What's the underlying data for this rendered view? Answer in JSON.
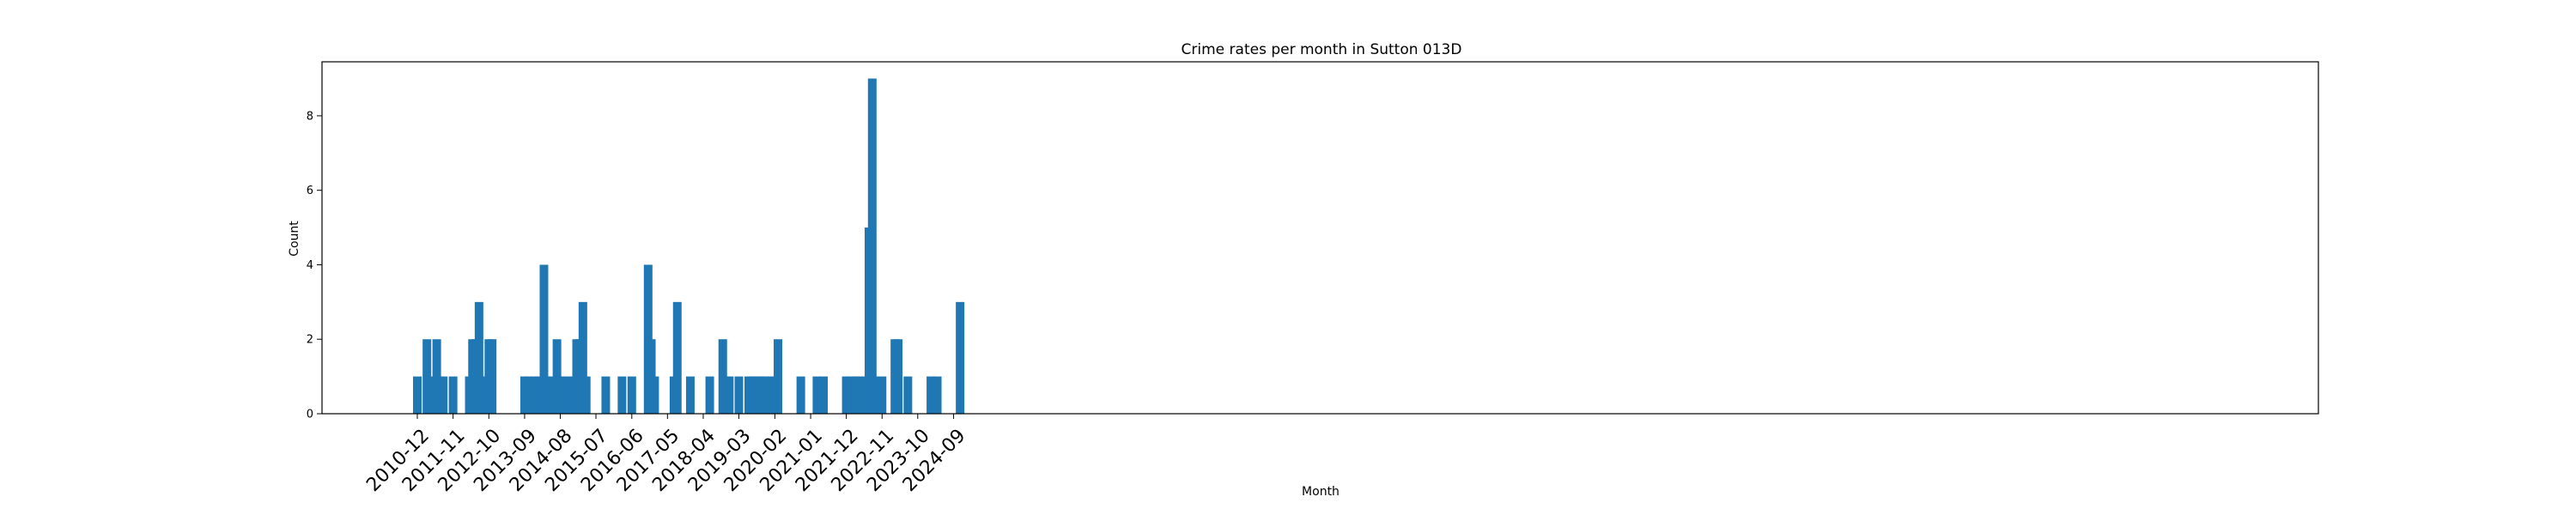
{
  "chart_data": {
    "type": "bar",
    "title": "Crime rates per month in Sutton 013D",
    "xlabel": "Month",
    "ylabel": "Count",
    "ylim": [
      0,
      9.45
    ],
    "yticks": [
      0,
      2,
      4,
      6,
      8
    ],
    "xticks": [
      "2010-12",
      "2011-11",
      "2012-10",
      "2013-09",
      "2014-08",
      "2015-07",
      "2016-06",
      "2017-05",
      "2018-04",
      "2019-03",
      "2020-02",
      "2021-01",
      "2021-12",
      "2022-11",
      "2023-10",
      "2024-09"
    ],
    "grid": false,
    "bar_color": "#1f77b4",
    "categories": [
      "2010-12",
      "2011-03",
      "2011-04",
      "2011-06",
      "2011-07",
      "2011-08",
      "2011-11",
      "2012-04",
      "2012-05",
      "2012-06",
      "2012-07",
      "2012-08",
      "2012-09",
      "2012-10",
      "2012-11",
      "2013-09",
      "2013-10",
      "2013-12",
      "2014-01",
      "2014-03",
      "2014-04",
      "2014-05",
      "2014-07",
      "2014-08",
      "2014-09",
      "2014-11",
      "2014-12",
      "2015-01",
      "2015-02",
      "2015-03",
      "2015-04",
      "2015-10",
      "2016-03",
      "2016-06",
      "2016-11",
      "2016-12",
      "2017-01",
      "2017-07",
      "2017-08",
      "2017-12",
      "2018-06",
      "2018-10",
      "2018-11",
      "2018-12",
      "2019-03",
      "2019-06",
      "2019-07",
      "2019-08",
      "2019-09",
      "2019-10",
      "2019-11",
      "2020-01",
      "2020-02",
      "2020-03",
      "2020-10",
      "2021-03",
      "2021-05",
      "2021-12",
      "2022-01",
      "2022-03",
      "2022-04",
      "2022-06",
      "2022-07",
      "2022-08",
      "2022-09",
      "2022-11",
      "2023-03",
      "2023-04",
      "2023-07",
      "2024-02",
      "2024-04",
      "2024-11"
    ],
    "values": [
      1,
      2,
      1,
      2,
      1,
      1,
      1,
      1,
      2,
      2,
      3,
      1,
      1,
      2,
      2,
      1,
      1,
      1,
      1,
      4,
      1,
      1,
      2,
      1,
      1,
      1,
      1,
      2,
      2,
      3,
      1,
      1,
      1,
      1,
      4,
      2,
      1,
      1,
      3,
      1,
      1,
      2,
      1,
      1,
      1,
      1,
      1,
      1,
      1,
      1,
      1,
      1,
      1,
      2,
      1,
      1,
      1,
      1,
      1,
      1,
      1,
      1,
      5,
      9,
      1,
      1,
      2,
      2,
      1,
      1,
      1,
      3
    ]
  }
}
